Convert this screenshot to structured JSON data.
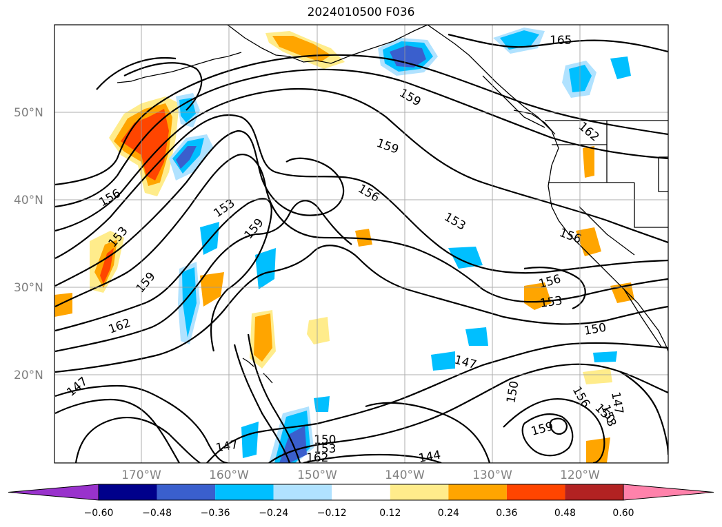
{
  "title": "2024010500 F036",
  "lat_labels": [
    "50°N",
    "40°N",
    "30°N",
    "20°N"
  ],
  "lon_labels": [
    "170°W",
    "160°W",
    "150°W",
    "140°W",
    "130°W",
    "120°W"
  ],
  "contour_labels": [
    "165",
    "159",
    "159",
    "162",
    "156",
    "156",
    "153",
    "153",
    "153",
    "159",
    "156",
    "156",
    "153",
    "159",
    "162",
    "150",
    "147",
    "147",
    "150",
    "144",
    "147",
    "150",
    "153",
    "156",
    "159",
    "147",
    "153",
    "150",
    "162"
  ],
  "colorbar": {
    "ticks": [
      "−0.60",
      "−0.48",
      "−0.36",
      "−0.24",
      "−0.12",
      "0.12",
      "0.24",
      "0.36",
      "0.48",
      "0.60"
    ],
    "colors": [
      "#9932cc",
      "#00008b",
      "#3a5fcd",
      "#00bfff",
      "#b0e2ff",
      "#ffffff",
      "#ffec8b",
      "#ffa500",
      "#ff4500",
      "#b22222",
      "#ff82ab"
    ]
  },
  "shading_colors": {
    "light_blue": "#b0e2ff",
    "blue": "#00bfff",
    "dark_blue": "#3a5fcd",
    "navy": "#00008b",
    "yellow": "#ffec8b",
    "orange": "#ffa500",
    "red_orange": "#ff4500"
  }
}
